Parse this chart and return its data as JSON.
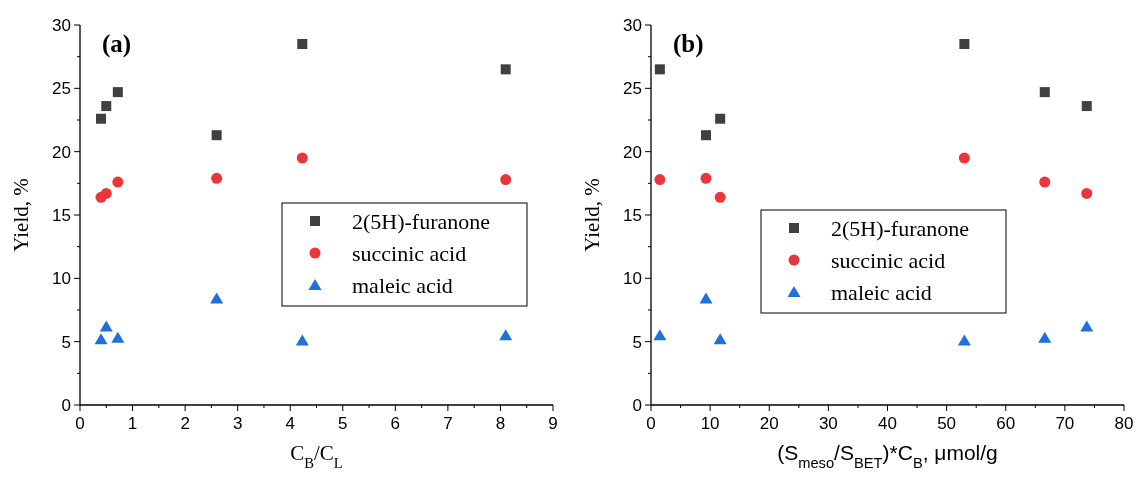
{
  "chart_data": [
    {
      "type": "scatter",
      "xlabel": "C$_{B}$/C$_{L}$",
      "ylabel": "Yield, %",
      "annotations": [
        "(a)"
      ],
      "x": [
        0.4,
        0.5,
        0.72,
        2.6,
        4.23,
        8.1
      ],
      "series": [
        {
          "name": "2(5H)-furanone",
          "color": "#404040",
          "marker": "square",
          "values": [
            22.6,
            23.6,
            24.7,
            21.3,
            28.5,
            26.5
          ]
        },
        {
          "name": "succinic acid",
          "color": "#e8363a",
          "marker": "circle",
          "values": [
            16.4,
            16.7,
            17.6,
            17.9,
            19.5,
            17.8
          ]
        },
        {
          "name": "maleic acid",
          "color": "#1f6fdc",
          "marker": "triangle",
          "values": [
            5.2,
            6.2,
            5.3,
            8.4,
            5.1,
            5.5
          ]
        }
      ],
      "xlim": [
        0,
        9
      ],
      "xticks": [
        0,
        {
          "value": 0.5,
          "label": null
        },
        1,
        {
          "value": 1.5,
          "label": null
        },
        2,
        {
          "value": 2.5,
          "label": null
        },
        3,
        {
          "value": 3.5,
          "label": null
        },
        4,
        {
          "value": 4.5,
          "label": null
        },
        5,
        {
          "value": 5.5,
          "label": null
        },
        6,
        {
          "value": 6.5,
          "label": null
        },
        7,
        {
          "value": 7.5,
          "label": null
        },
        8,
        {
          "value": 8.5,
          "label": null
        },
        9
      ],
      "ylim": [
        0,
        30
      ],
      "yticks": [
        0,
        {
          "value": 2.5,
          "label": null
        },
        5,
        {
          "value": 7.5,
          "label": null
        },
        10,
        {
          "value": 12.5,
          "label": null
        },
        15,
        {
          "value": 17.5,
          "label": null
        },
        20,
        {
          "value": 22.5,
          "label": null
        },
        25,
        {
          "value": 27.5,
          "label": null
        },
        30
      ],
      "legend": "right"
    },
    {
      "type": "scatter",
      "xlabel": "(S$_{meso}$/S$_{BET}$)*C$_{B}$, μmol/g",
      "ylabel": "Yield, %",
      "annotations": [
        "(b)"
      ],
      "x": [
        1.5,
        9.3,
        11.7,
        53,
        66.6,
        73.7
      ],
      "series": [
        {
          "name": "2(5H)-furanone",
          "color": "#404040",
          "marker": "square",
          "values": [
            26.5,
            21.3,
            22.6,
            28.5,
            24.7,
            23.6
          ]
        },
        {
          "name": "succinic acid",
          "color": "#e8363a",
          "marker": "circle",
          "values": [
            17.8,
            17.9,
            16.4,
            19.5,
            17.6,
            16.7
          ]
        },
        {
          "name": "maleic acid",
          "color": "#1f6fdc",
          "marker": "triangle",
          "values": [
            5.5,
            8.4,
            5.2,
            5.1,
            5.3,
            6.2
          ]
        }
      ],
      "xlim": [
        0,
        80
      ],
      "xticks": [
        0,
        {
          "value": 5,
          "label": null
        },
        10,
        {
          "value": 15,
          "label": null
        },
        20,
        {
          "value": 25,
          "label": null
        },
        30,
        {
          "value": 35,
          "label": null
        },
        40,
        {
          "value": 45,
          "label": null
        },
        50,
        {
          "value": 55,
          "label": null
        },
        60,
        {
          "value": 65,
          "label": null
        },
        70,
        {
          "value": 75,
          "label": null
        },
        80
      ],
      "ylim": [
        0,
        30
      ],
      "yticks": [
        0,
        {
          "value": 2.5,
          "label": null
        },
        5,
        {
          "value": 7.5,
          "label": null
        },
        10,
        {
          "value": 12.5,
          "label": null
        },
        15,
        {
          "value": 17.5,
          "label": null
        },
        20,
        {
          "value": 22.5,
          "label": null
        },
        25,
        {
          "value": 27.5,
          "label": null
        },
        30
      ],
      "legend": "center"
    }
  ]
}
